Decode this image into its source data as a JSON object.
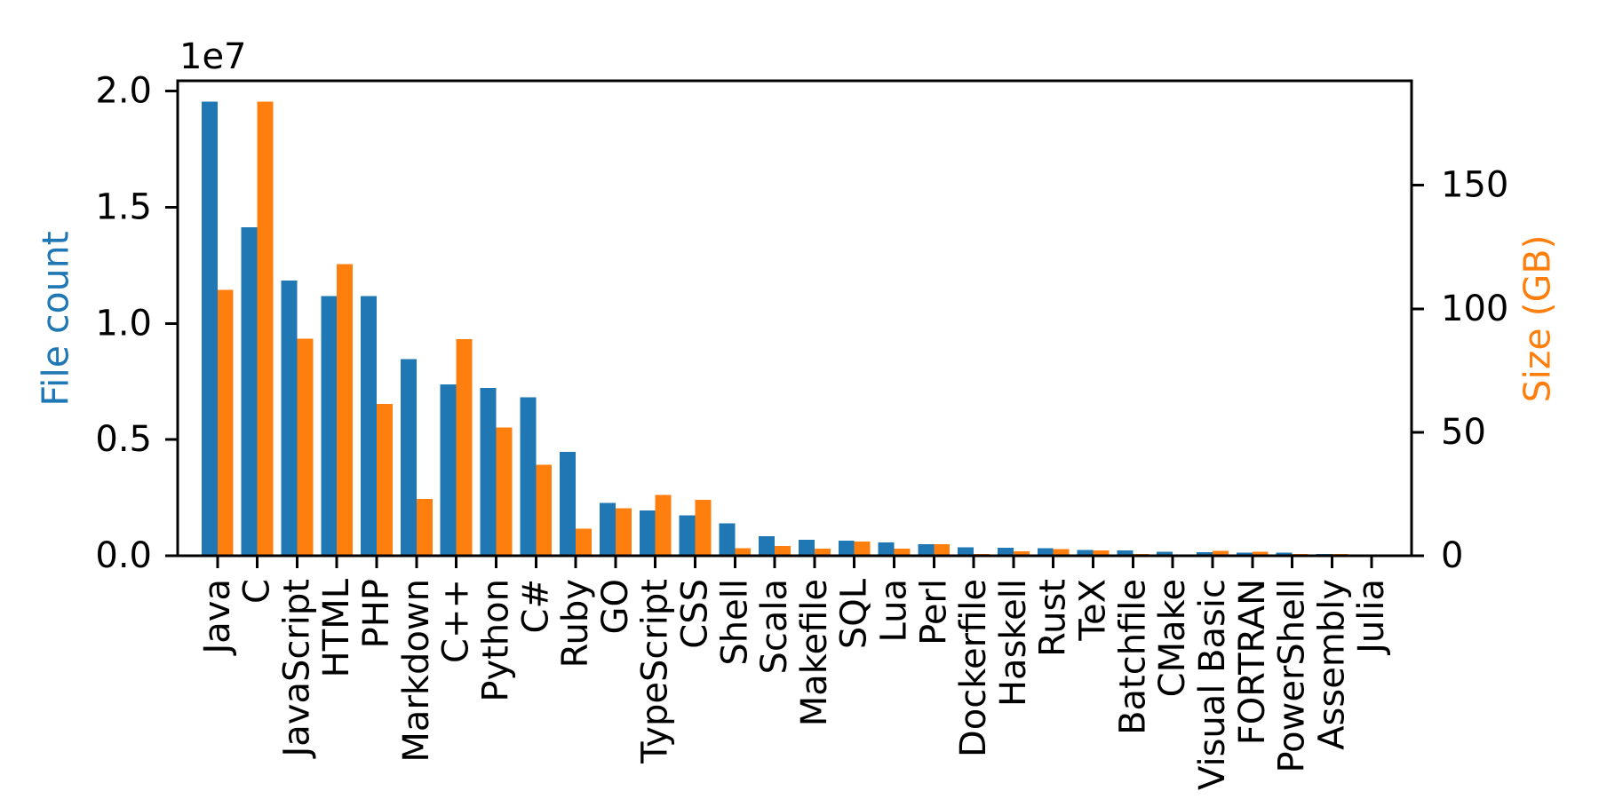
{
  "chart_data": {
    "type": "bar",
    "title": "",
    "dual_axis": true,
    "grid": false,
    "legend": false,
    "background": "#ffffff",
    "text_color": "#000000",
    "x_tick_rotation": -90,
    "categories": [
      "Java",
      "C",
      "JavaScript",
      "HTML",
      "PHP",
      "Markdown",
      "C++",
      "Python",
      "C#",
      "Ruby",
      "GO",
      "TypeScript",
      "CSS",
      "Shell",
      "Scala",
      "Makefile",
      "SQL",
      "Lua",
      "Perl",
      "Dockerfile",
      "Haskell",
      "Rust",
      "TeX",
      "Batchfile",
      "CMake",
      "Visual Basic",
      "FORTRAN",
      "PowerShell",
      "Assembly",
      "Julia"
    ],
    "series": [
      {
        "name": "File count",
        "axis": "left",
        "color": "#1f77b4",
        "values": [
          19548190,
          14143113,
          11839883,
          11178557,
          11177610,
          8464626,
          7380520,
          7226626,
          6811652,
          4473331,
          2265436,
          1940406,
          1734406,
          1385648,
          835755,
          679430,
          656671,
          578554,
          497949,
          366505,
          340057,
          322431,
          251015,
          236945,
          175282,
          155652,
          142038,
          136846,
          82905,
          58317
        ]
      },
      {
        "name": "Size (GB)",
        "axis": "right",
        "color": "#ff7f0e",
        "values": [
          107.7,
          183.83,
          87.82,
          118.12,
          61.41,
          23.09,
          87.73,
          52.03,
          36.83,
          10.95,
          19.28,
          24.59,
          22.67,
          3.01,
          3.87,
          2.92,
          5.67,
          2.81,
          4.7,
          0.71,
          1.85,
          2.68,
          2.15,
          0.7,
          0.54,
          1.91,
          1.62,
          0.69,
          0.78,
          0.29
        ]
      }
    ],
    "y_left": {
      "label": "File count",
      "color": "#1f77b4",
      "offset_text": "1e7",
      "min": 0,
      "max": 20440000,
      "tick_values": [
        0,
        5000000,
        10000000,
        15000000,
        20000000
      ],
      "tick_labels": [
        "0.0",
        "0.5",
        "1.0",
        "1.5",
        "2.0"
      ]
    },
    "y_right": {
      "label": "Size (GB)",
      "color": "#ff7f0e",
      "min": 0,
      "max": 192.3,
      "tick_values": [
        0,
        50,
        100,
        150
      ],
      "tick_labels": [
        "0",
        "50",
        "100",
        "150"
      ]
    }
  }
}
